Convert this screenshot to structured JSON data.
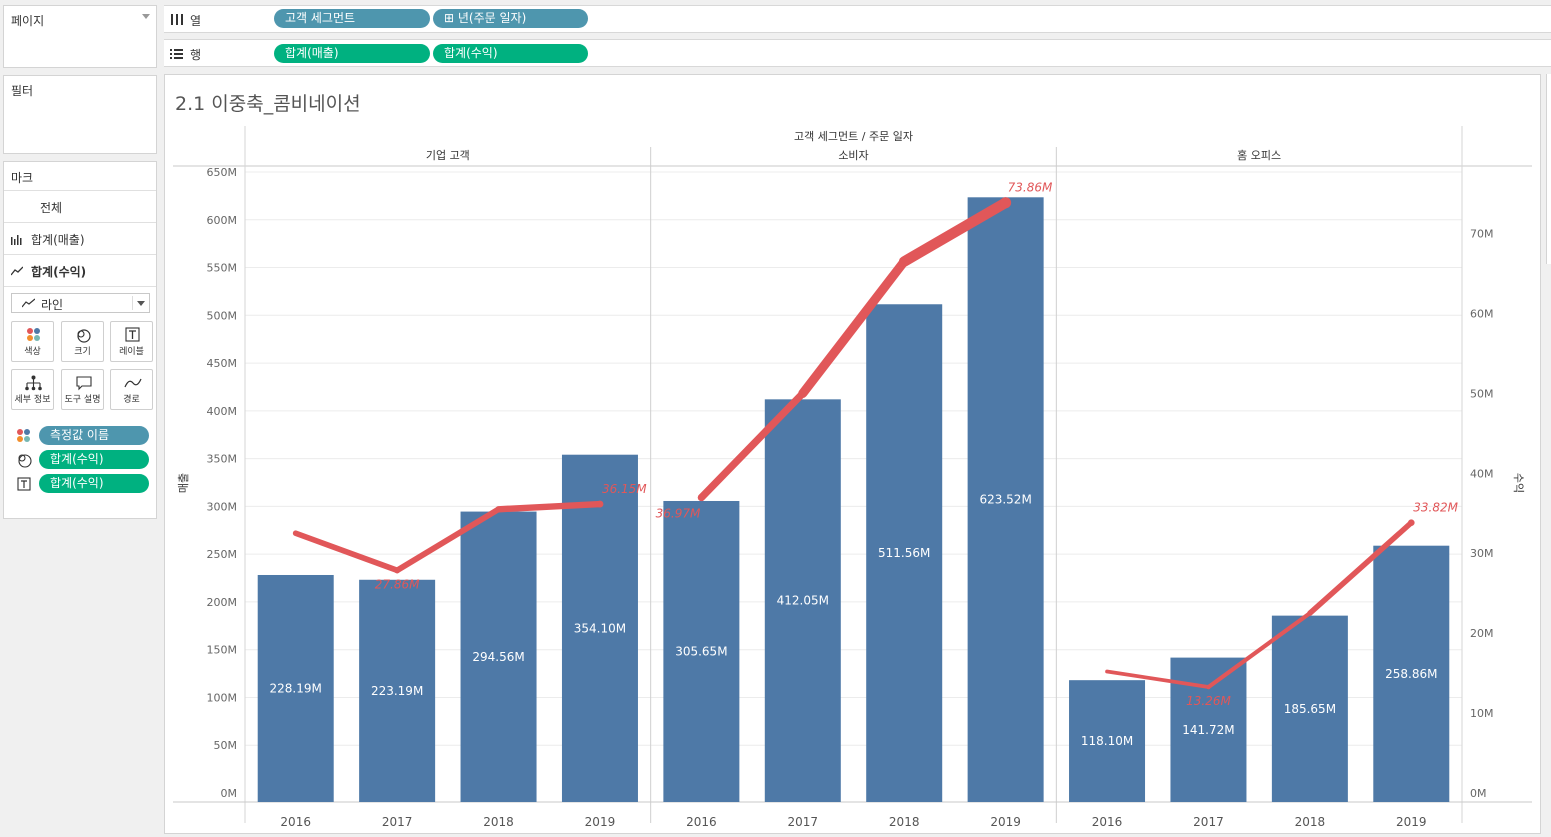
{
  "pages_card": {
    "title": "페이지"
  },
  "filters_card": {
    "title": "필터"
  },
  "shelves": {
    "columns": {
      "label": "열",
      "pills": [
        "고객 세그먼트",
        "⊞ 년(주문 일자)"
      ]
    },
    "rows": {
      "label": "행",
      "pills": [
        "합계(매출)",
        "합계(수익)"
      ]
    }
  },
  "marks_card": {
    "title": "마크",
    "all": "전체",
    "sales": "합계(매출)",
    "profit": "합계(수익)",
    "mark_type": "라인",
    "buttons": [
      "색상",
      "크기",
      "레이블",
      "세부 정보",
      "도구 설명",
      "경로"
    ],
    "legend": [
      "측정값 이름",
      "합계(수익)",
      "합계(수익)"
    ]
  },
  "sheet": {
    "title": "2.1 이중축_콤비네이션",
    "header": "고객 세그먼트 / 주문 일자",
    "left_axis_title": "매출",
    "right_axis_title": "수익"
  },
  "colors": {
    "bar": "#4e79a7",
    "line": "#e15759",
    "pill_blue": "#4e96ae",
    "pill_green": "#00b180"
  },
  "icons": [
    "columns-icon",
    "rows-icon",
    "bar-icon",
    "line-icon",
    "color-icon",
    "size-icon",
    "label-icon",
    "detail-icon",
    "tooltip-icon",
    "path-icon"
  ],
  "chart_data": {
    "type": "bar",
    "panes": [
      "기업 고객",
      "소비자",
      "홈 오피스"
    ],
    "years": [
      "2016",
      "2017",
      "2018",
      "2019"
    ],
    "y_ticks": [
      "0M",
      "50M",
      "100M",
      "150M",
      "200M",
      "250M",
      "300M",
      "350M",
      "400M",
      "450M",
      "500M",
      "550M",
      "600M",
      "650M"
    ],
    "y2_ticks": [
      "0M",
      "10M",
      "20M",
      "30M",
      "40M",
      "50M",
      "60M",
      "70M"
    ],
    "ylim": [
      0,
      650
    ],
    "y2lim": [
      0,
      77.7
    ],
    "sales": [
      [
        228.19,
        223.19,
        294.56,
        354.1
      ],
      [
        305.65,
        412.05,
        511.56,
        623.52
      ],
      [
        118.1,
        141.72,
        185.65,
        258.86
      ]
    ],
    "sales_labels": [
      [
        "228.19M",
        "223.19M",
        "294.56M",
        "354.10M"
      ],
      [
        "305.65M",
        "412.05M",
        "511.56M",
        "623.52M"
      ],
      [
        "118.10M",
        "141.72M",
        "185.65M",
        "258.86M"
      ]
    ],
    "profit": [
      [
        32.5,
        27.86,
        35.5,
        36.15
      ],
      [
        36.97,
        50.0,
        66.5,
        73.86
      ],
      [
        15.2,
        13.26,
        22.5,
        33.82
      ]
    ],
    "profit_labels": [
      [
        null,
        "27.86M",
        null,
        "36.15M"
      ],
      [
        "36.97M",
        null,
        null,
        "73.86M"
      ],
      [
        null,
        "13.26M",
        null,
        "33.82M"
      ]
    ]
  }
}
